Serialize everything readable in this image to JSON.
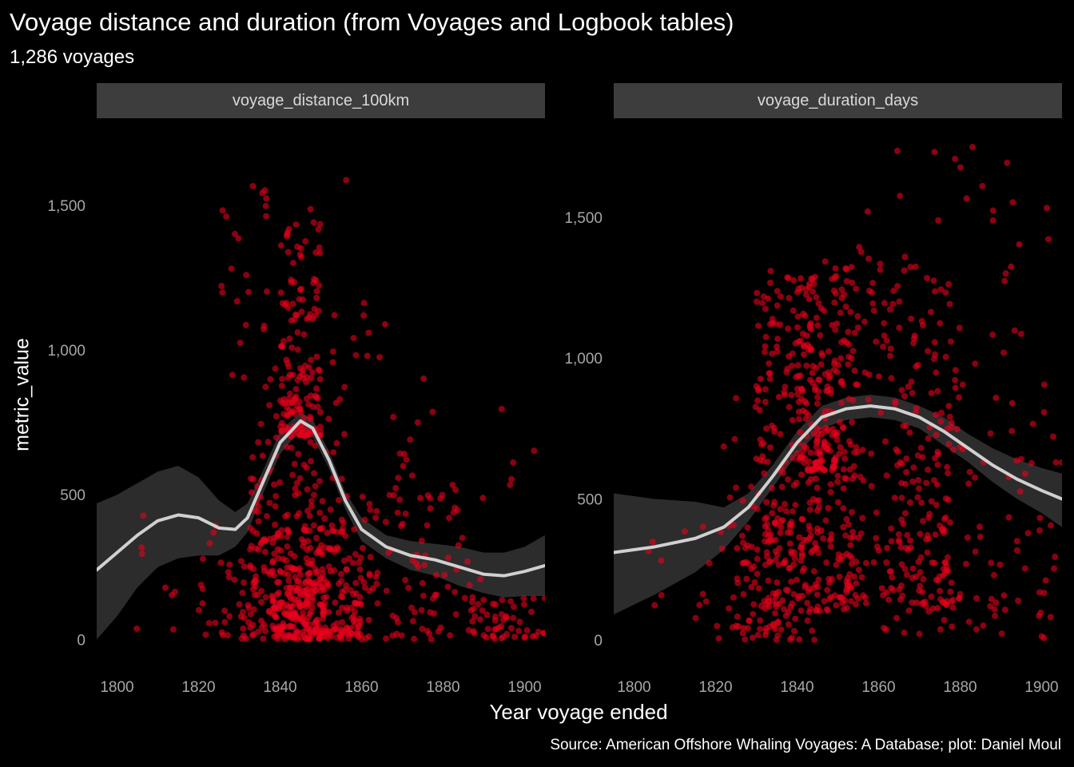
{
  "title": "Voyage distance and duration (from Voyages and Logbook tables)",
  "subtitle": "1,286 voyages",
  "caption": "Source: American Offshore Whaling Voyages: A Database; plot: Daniel Moul",
  "chart_data": {
    "type": "scatter",
    "xlabel": "Year voyage ended",
    "ylabel": "metric_value",
    "grid": false,
    "colors": {
      "background": "#000000",
      "points": "#e8001c",
      "smooth_line": "#d0d0d0",
      "ribbon": "#2e2e2e",
      "strip": "#3d3d3d",
      "tick_text": "#a6a6a6"
    },
    "panels": [
      {
        "name": "voyage_distance_100km",
        "xlim": [
          1795,
          1905
        ],
        "ylim": [
          -60,
          1790
        ],
        "x_ticks": [
          1800,
          1820,
          1840,
          1860,
          1880,
          1900
        ],
        "y_ticks": [
          0,
          500,
          1000,
          1500
        ],
        "y_tick_labels": [
          "0",
          "500",
          "1,000",
          "1,500"
        ],
        "smooth": [
          [
            1795,
            240
          ],
          [
            1800,
            300
          ],
          [
            1805,
            360
          ],
          [
            1810,
            410
          ],
          [
            1815,
            430
          ],
          [
            1820,
            420
          ],
          [
            1825,
            385
          ],
          [
            1829,
            380
          ],
          [
            1832,
            420
          ],
          [
            1836,
            550
          ],
          [
            1840,
            680
          ],
          [
            1845,
            755
          ],
          [
            1848,
            730
          ],
          [
            1852,
            620
          ],
          [
            1856,
            480
          ],
          [
            1860,
            380
          ],
          [
            1866,
            320
          ],
          [
            1872,
            290
          ],
          [
            1878,
            275
          ],
          [
            1884,
            250
          ],
          [
            1890,
            225
          ],
          [
            1895,
            220
          ],
          [
            1900,
            235
          ],
          [
            1905,
            255
          ]
        ],
        "smooth_upper": [
          [
            1795,
            470
          ],
          [
            1800,
            500
          ],
          [
            1805,
            540
          ],
          [
            1810,
            580
          ],
          [
            1815,
            600
          ],
          [
            1820,
            560
          ],
          [
            1825,
            480
          ],
          [
            1829,
            440
          ],
          [
            1832,
            470
          ],
          [
            1836,
            590
          ],
          [
            1840,
            720
          ],
          [
            1845,
            785
          ],
          [
            1848,
            760
          ],
          [
            1852,
            650
          ],
          [
            1856,
            510
          ],
          [
            1860,
            420
          ],
          [
            1866,
            360
          ],
          [
            1872,
            340
          ],
          [
            1878,
            330
          ],
          [
            1884,
            320
          ],
          [
            1890,
            300
          ],
          [
            1895,
            300
          ],
          [
            1900,
            320
          ],
          [
            1905,
            360
          ]
        ],
        "smooth_lower": [
          [
            1795,
            0
          ],
          [
            1800,
            80
          ],
          [
            1805,
            180
          ],
          [
            1810,
            250
          ],
          [
            1815,
            280
          ],
          [
            1820,
            290
          ],
          [
            1825,
            290
          ],
          [
            1829,
            320
          ],
          [
            1832,
            370
          ],
          [
            1836,
            510
          ],
          [
            1840,
            640
          ],
          [
            1845,
            725
          ],
          [
            1848,
            700
          ],
          [
            1852,
            590
          ],
          [
            1856,
            450
          ],
          [
            1860,
            340
          ],
          [
            1866,
            280
          ],
          [
            1872,
            240
          ],
          [
            1878,
            220
          ],
          [
            1884,
            185
          ],
          [
            1890,
            160
          ],
          [
            1895,
            145
          ],
          [
            1900,
            150
          ],
          [
            1905,
            150
          ]
        ],
        "points_note": "points generated from density clusters",
        "clusters": [
          {
            "x": [
              1830,
              1860
            ],
            "y": [
              0,
              400
            ],
            "n": 260
          },
          {
            "x": [
              1838,
              1852
            ],
            "y": [
              0,
              250
            ],
            "n": 140
          },
          {
            "x": [
              1840,
              1850
            ],
            "y": [
              700,
              1450
            ],
            "n": 150
          },
          {
            "x": [
              1832,
              1856
            ],
            "y": [
              300,
              900
            ],
            "n": 120
          },
          {
            "x": [
              1855,
              1890
            ],
            "y": [
              0,
              500
            ],
            "n": 110
          },
          {
            "x": [
              1885,
              1905
            ],
            "y": [
              0,
              150
            ],
            "n": 50
          },
          {
            "x": [
              1820,
              1835
            ],
            "y": [
              0,
              450
            ],
            "n": 35
          },
          {
            "x": [
              1825,
              1870
            ],
            "y": [
              900,
              1600
            ],
            "n": 40
          },
          {
            "x": [
              1860,
              1905
            ],
            "y": [
              500,
              1000
            ],
            "n": 20
          },
          {
            "x": [
              1800,
              1820
            ],
            "y": [
              0,
              450
            ],
            "n": 8
          }
        ]
      },
      {
        "name": "voyage_duration_days",
        "xlim": [
          1795,
          1905
        ],
        "ylim": [
          -60,
          1840
        ],
        "x_ticks": [
          1800,
          1820,
          1840,
          1860,
          1880,
          1900
        ],
        "y_ticks": [
          0,
          500,
          1000,
          1500
        ],
        "y_tick_labels": [
          "0",
          "500",
          "1,000",
          "1,500"
        ],
        "smooth": [
          [
            1795,
            310
          ],
          [
            1805,
            330
          ],
          [
            1815,
            360
          ],
          [
            1822,
            400
          ],
          [
            1828,
            470
          ],
          [
            1834,
            580
          ],
          [
            1840,
            700
          ],
          [
            1846,
            790
          ],
          [
            1852,
            820
          ],
          [
            1858,
            830
          ],
          [
            1864,
            820
          ],
          [
            1870,
            790
          ],
          [
            1876,
            740
          ],
          [
            1882,
            680
          ],
          [
            1888,
            620
          ],
          [
            1894,
            570
          ],
          [
            1900,
            530
          ],
          [
            1905,
            500
          ]
        ],
        "smooth_upper": [
          [
            1795,
            520
          ],
          [
            1805,
            500
          ],
          [
            1815,
            490
          ],
          [
            1822,
            470
          ],
          [
            1828,
            520
          ],
          [
            1834,
            620
          ],
          [
            1840,
            740
          ],
          [
            1846,
            830
          ],
          [
            1852,
            860
          ],
          [
            1858,
            870
          ],
          [
            1864,
            860
          ],
          [
            1870,
            830
          ],
          [
            1876,
            790
          ],
          [
            1882,
            730
          ],
          [
            1888,
            680
          ],
          [
            1894,
            640
          ],
          [
            1900,
            610
          ],
          [
            1905,
            590
          ]
        ],
        "smooth_lower": [
          [
            1795,
            90
          ],
          [
            1805,
            160
          ],
          [
            1815,
            240
          ],
          [
            1822,
            320
          ],
          [
            1828,
            420
          ],
          [
            1834,
            540
          ],
          [
            1840,
            660
          ],
          [
            1846,
            750
          ],
          [
            1852,
            780
          ],
          [
            1858,
            790
          ],
          [
            1864,
            780
          ],
          [
            1870,
            750
          ],
          [
            1876,
            690
          ],
          [
            1882,
            630
          ],
          [
            1888,
            560
          ],
          [
            1894,
            500
          ],
          [
            1900,
            450
          ],
          [
            1905,
            400
          ]
        ],
        "points_note": "points generated from density clusters",
        "clusters": [
          {
            "x": [
              1830,
              1855
            ],
            "y": [
              100,
              1350
            ],
            "n": 330
          },
          {
            "x": [
              1840,
              1850
            ],
            "y": [
              600,
              1300
            ],
            "n": 120
          },
          {
            "x": [
              1850,
              1880
            ],
            "y": [
              100,
              1400
            ],
            "n": 220
          },
          {
            "x": [
              1825,
              1845
            ],
            "y": [
              0,
              500
            ],
            "n": 100
          },
          {
            "x": [
              1860,
              1905
            ],
            "y": [
              0,
              1000
            ],
            "n": 120
          },
          {
            "x": [
              1855,
              1905
            ],
            "y": [
              1000,
              1800
            ],
            "n": 40
          },
          {
            "x": [
              1815,
              1830
            ],
            "y": [
              0,
              900
            ],
            "n": 30
          },
          {
            "x": [
              1800,
              1815
            ],
            "y": [
              0,
              500
            ],
            "n": 6
          }
        ]
      }
    ]
  }
}
